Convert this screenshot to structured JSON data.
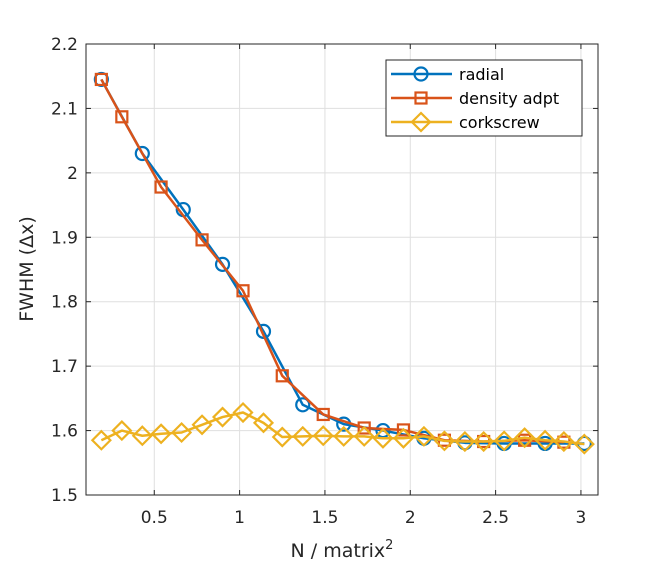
{
  "chart_data": {
    "type": "line",
    "title": "",
    "xlabel": "N / matrix",
    "xlabel_superscript": "2",
    "ylabel": "FWHM (Δx)",
    "xlim": [
      0.1,
      3.1
    ],
    "ylim": [
      1.5,
      2.2
    ],
    "xticks": [
      0.5,
      1,
      1.5,
      2,
      2.5,
      3
    ],
    "xtick_labels": [
      "0.5",
      "1",
      "1.5",
      "2",
      "2.5",
      "3"
    ],
    "yticks": [
      1.5,
      1.6,
      1.7,
      1.8,
      1.9,
      2.0,
      2.1,
      2.2
    ],
    "ytick_labels": [
      "1.5",
      "1.6",
      "1.7",
      "1.8",
      "1.9",
      "2",
      "2.1",
      "2.2"
    ],
    "grid": true,
    "legend_position": "top-right",
    "series": [
      {
        "name": "radial",
        "color": "#0072BD",
        "marker": "circle",
        "x": [
          0.19,
          0.43,
          0.67,
          0.9,
          1.14,
          1.37,
          1.61,
          1.84,
          2.08,
          2.32,
          2.55,
          2.79,
          3.02
        ],
        "y": [
          2.145,
          2.03,
          1.943,
          1.858,
          1.754,
          1.64,
          1.61,
          1.6,
          1.588,
          1.581,
          1.58,
          1.58,
          1.58
        ]
      },
      {
        "name": "density adpt",
        "color": "#D95319",
        "marker": "square",
        "x": [
          0.19,
          0.31,
          0.54,
          0.78,
          1.02,
          1.25,
          1.49,
          1.73,
          1.96,
          2.2,
          2.43,
          2.67,
          2.9
        ],
        "y": [
          2.145,
          2.087,
          1.978,
          1.896,
          1.817,
          1.685,
          1.625,
          1.604,
          1.601,
          1.585,
          1.583,
          1.585,
          1.582
        ]
      },
      {
        "name": "corkscrew",
        "color": "#EDB120",
        "marker": "diamond",
        "x": [
          0.19,
          0.31,
          0.43,
          0.54,
          0.66,
          0.78,
          0.9,
          1.02,
          1.14,
          1.25,
          1.37,
          1.49,
          1.61,
          1.73,
          1.84,
          1.96,
          2.08,
          2.2,
          2.32,
          2.43,
          2.55,
          2.67,
          2.79,
          2.9,
          3.02
        ],
        "y": [
          1.585,
          1.6,
          1.592,
          1.595,
          1.597,
          1.609,
          1.621,
          1.628,
          1.612,
          1.59,
          1.591,
          1.592,
          1.591,
          1.591,
          1.588,
          1.588,
          1.591,
          1.584,
          1.583,
          1.583,
          1.584,
          1.589,
          1.585,
          1.583,
          1.579
        ]
      }
    ]
  }
}
